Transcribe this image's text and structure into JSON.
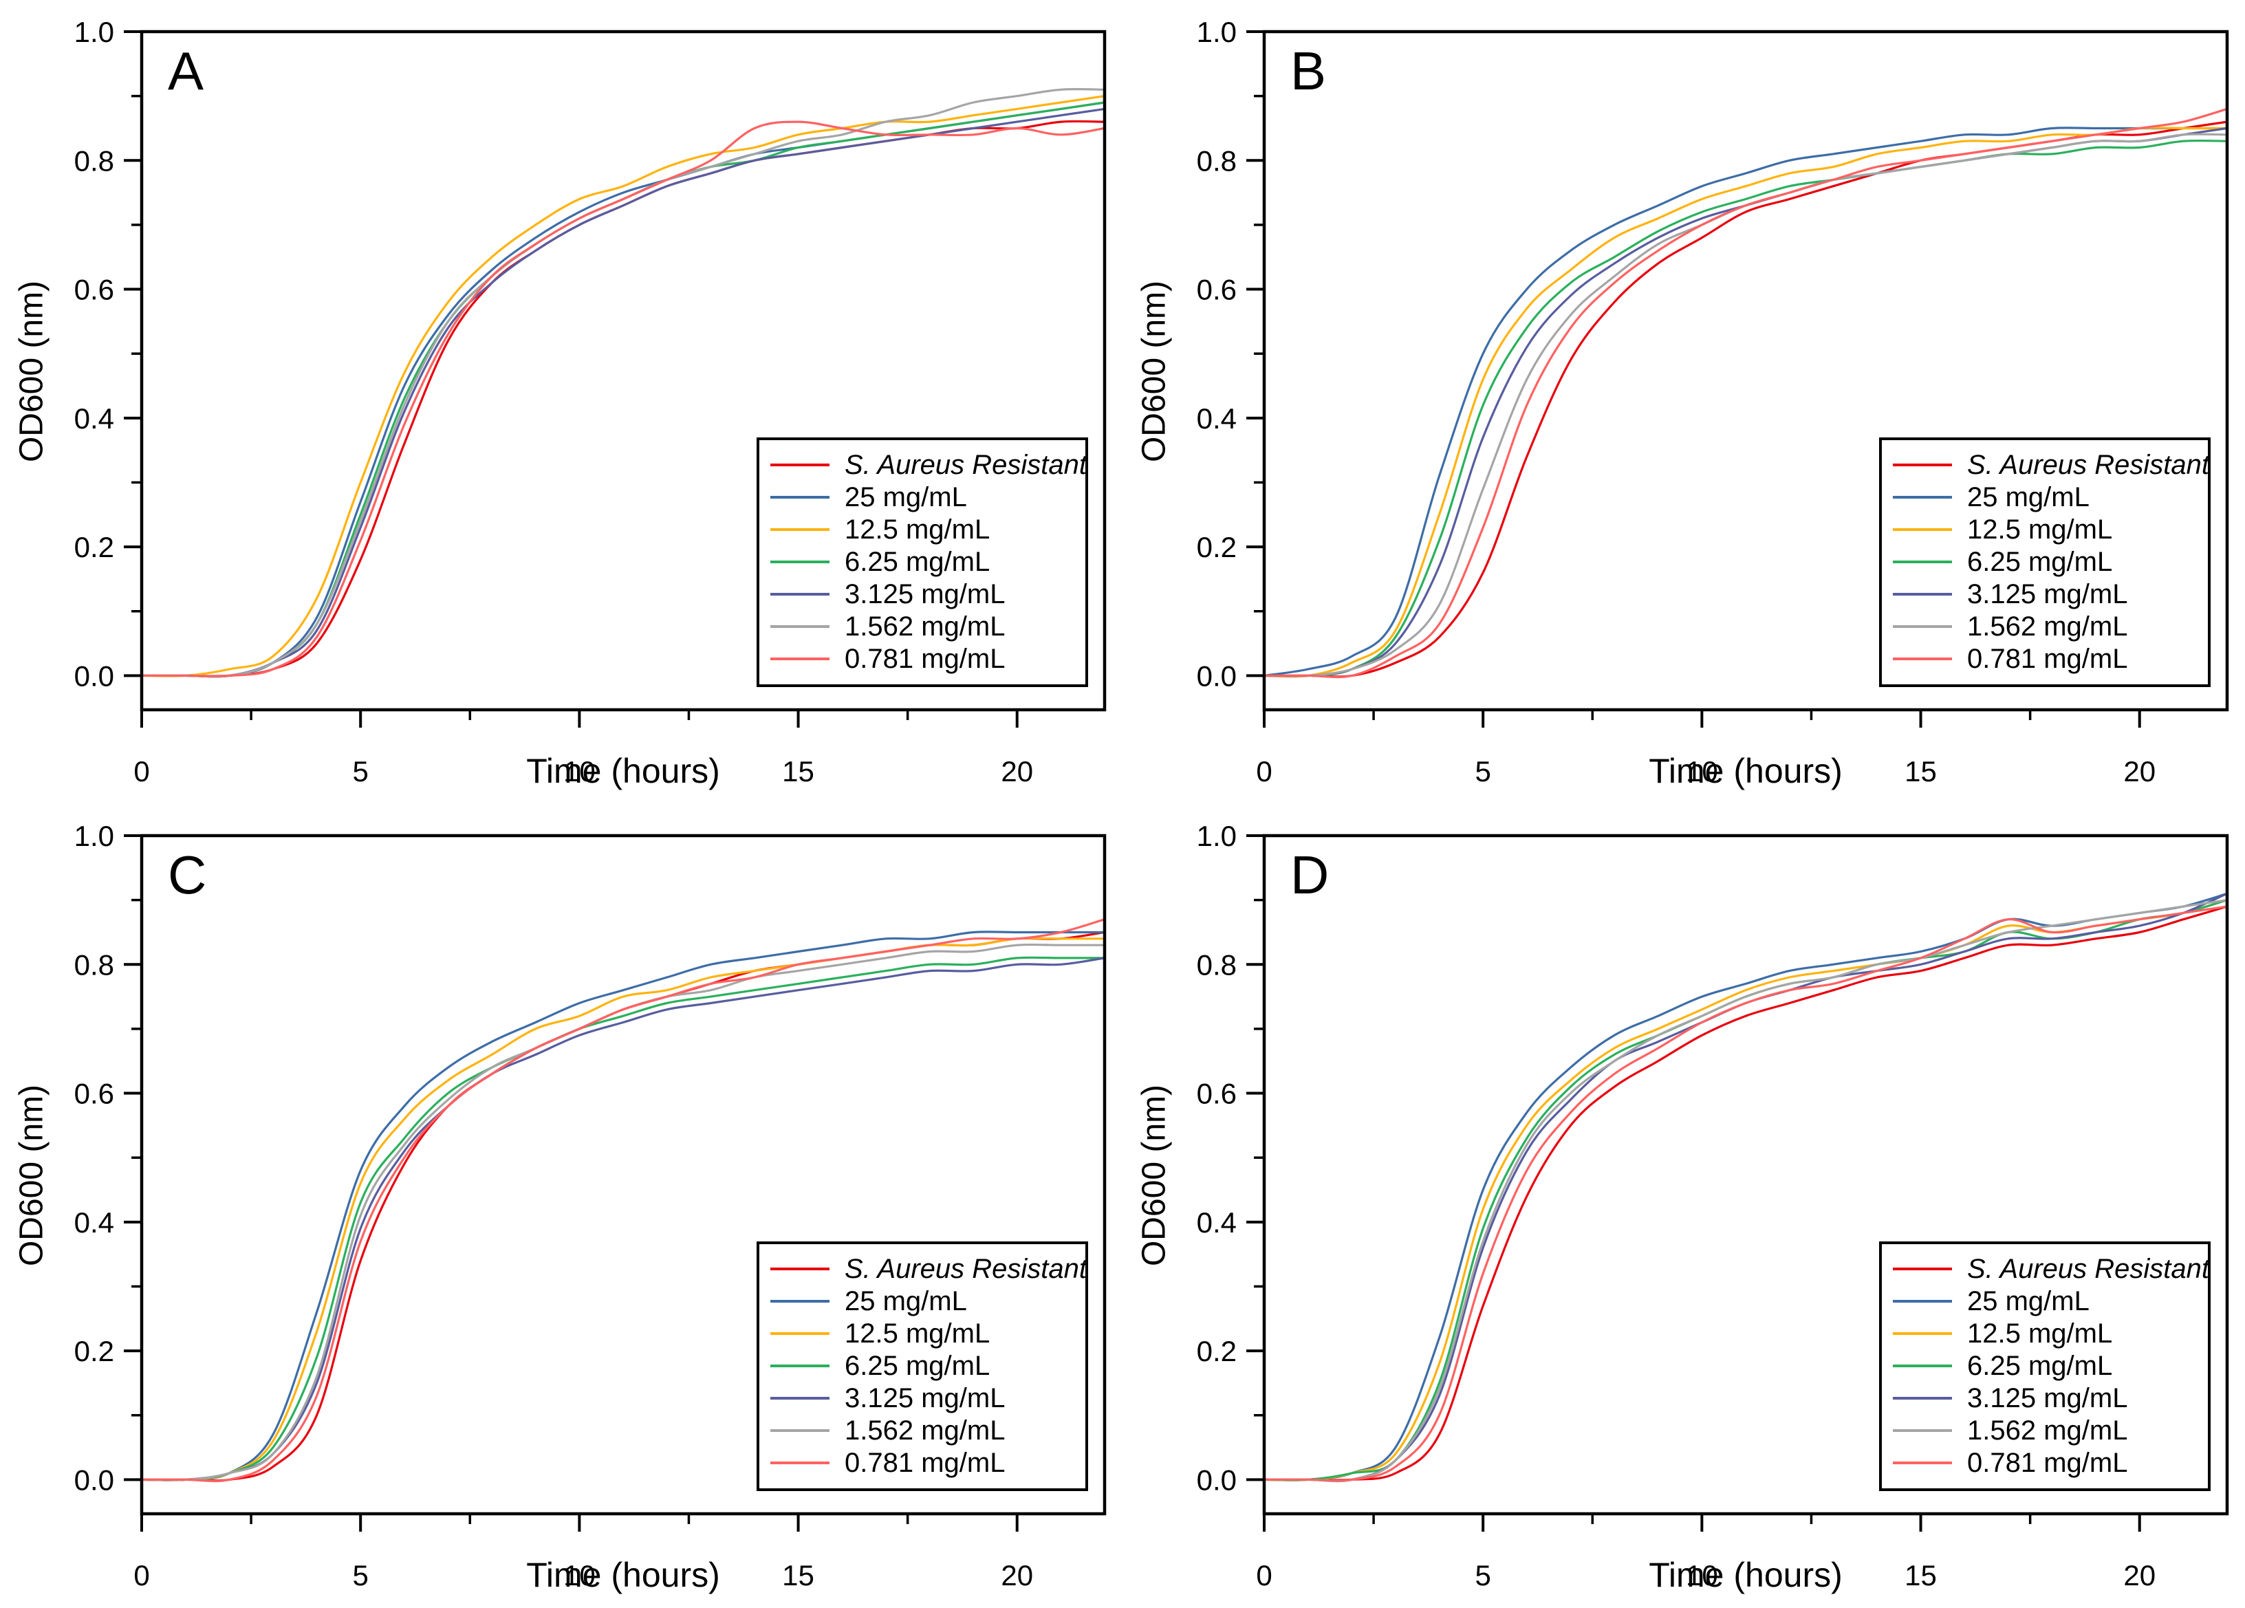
{
  "figure": {
    "description_labels": [
      "A",
      "B",
      "C",
      "D"
    ]
  },
  "axes": {
    "xlabel": "Time (hours)",
    "ylabel": "OD600 (nm)",
    "x_range": [
      0,
      22
    ],
    "y_range": [
      -0.053,
      1.0
    ],
    "x_major_ticks": [
      0,
      5,
      10,
      15,
      20
    ],
    "x_minor_ticks": [
      2.5,
      7.5,
      12.5,
      17.5
    ],
    "y_major_ticks": [
      0.0,
      0.2,
      0.4,
      0.6,
      0.8,
      1.0
    ],
    "y_minor_ticks": [
      0.1,
      0.3,
      0.5,
      0.7,
      0.9
    ],
    "grid": "off",
    "legend_position": "lower-right"
  },
  "legend": {
    "entries": [
      {
        "label": "S. Aureus Resistant",
        "color": "#e8000d",
        "italic": true
      },
      {
        "label": "25 mg/mL",
        "color": "#3d6da6"
      },
      {
        "label": "12.5 mg/mL",
        "color": "#ffb30f"
      },
      {
        "label": "6.25 mg/mL",
        "color": "#2bb05d"
      },
      {
        "label": "3.125 mg/mL",
        "color": "#585d9f"
      },
      {
        "label": "1.562 mg/mL",
        "color": "#a5a5a5"
      },
      {
        "label": "0.781 mg/mL",
        "color": "#ff6262"
      }
    ]
  },
  "time_hours": [
    0,
    1,
    2,
    3,
    4,
    5,
    6,
    7,
    8,
    9,
    10,
    11,
    12,
    13,
    14,
    15,
    16,
    17,
    18,
    19,
    20,
    21,
    22
  ],
  "chart_data": [
    {
      "panel_label": "A",
      "type": "line",
      "xlabel": "Time (hours)",
      "ylabel": "OD600 (nm)",
      "ylim": [
        -0.053,
        1.0
      ],
      "series": [
        {
          "name": "S. Aureus Resistant",
          "values": [
            0,
            0,
            0,
            0.01,
            0.05,
            0.18,
            0.36,
            0.52,
            0.61,
            0.66,
            0.7,
            0.73,
            0.76,
            0.78,
            0.8,
            0.81,
            0.82,
            0.83,
            0.84,
            0.85,
            0.85,
            0.86,
            0.86
          ]
        },
        {
          "name": "25 mg/mL",
          "values": [
            0,
            0,
            0,
            0.02,
            0.09,
            0.27,
            0.45,
            0.56,
            0.63,
            0.68,
            0.72,
            0.75,
            0.77,
            0.79,
            0.81,
            0.82,
            0.83,
            0.84,
            0.85,
            0.86,
            0.87,
            0.88,
            0.89
          ]
        },
        {
          "name": "12.5 mg/mL",
          "values": [
            0,
            0,
            0.01,
            0.03,
            0.12,
            0.3,
            0.47,
            0.58,
            0.65,
            0.7,
            0.74,
            0.76,
            0.79,
            0.81,
            0.82,
            0.84,
            0.85,
            0.86,
            0.86,
            0.87,
            0.88,
            0.89,
            0.9
          ]
        },
        {
          "name": "6.25 mg/mL",
          "values": [
            0,
            0,
            0,
            0.02,
            0.08,
            0.25,
            0.43,
            0.55,
            0.62,
            0.67,
            0.71,
            0.74,
            0.77,
            0.79,
            0.8,
            0.82,
            0.83,
            0.84,
            0.85,
            0.86,
            0.87,
            0.88,
            0.89
          ]
        },
        {
          "name": "3.125 mg/mL",
          "values": [
            0,
            0,
            0,
            0.02,
            0.07,
            0.23,
            0.41,
            0.54,
            0.61,
            0.66,
            0.7,
            0.73,
            0.76,
            0.78,
            0.8,
            0.81,
            0.82,
            0.83,
            0.84,
            0.85,
            0.86,
            0.87,
            0.88
          ]
        },
        {
          "name": "1.562 mg/mL",
          "values": [
            0,
            0,
            0,
            0.02,
            0.08,
            0.24,
            0.42,
            0.55,
            0.62,
            0.67,
            0.71,
            0.74,
            0.77,
            0.79,
            0.81,
            0.83,
            0.84,
            0.86,
            0.87,
            0.89,
            0.9,
            0.91,
            0.91
          ]
        },
        {
          "name": "0.781 mg/mL",
          "values": [
            0,
            0,
            0,
            0.01,
            0.06,
            0.21,
            0.39,
            0.53,
            0.62,
            0.67,
            0.71,
            0.74,
            0.77,
            0.8,
            0.85,
            0.86,
            0.85,
            0.84,
            0.84,
            0.84,
            0.85,
            0.84,
            0.85
          ]
        }
      ]
    },
    {
      "panel_label": "B",
      "type": "line",
      "xlabel": "Time (hours)",
      "ylabel": "OD600 (nm)",
      "ylim": [
        -0.053,
        1.0
      ],
      "series": [
        {
          "name": "S. Aureus Resistant",
          "values": [
            0,
            0,
            0,
            0.02,
            0.06,
            0.16,
            0.34,
            0.49,
            0.58,
            0.64,
            0.68,
            0.72,
            0.74,
            0.76,
            0.78,
            0.8,
            0.81,
            0.82,
            0.83,
            0.84,
            0.84,
            0.85,
            0.86
          ]
        },
        {
          "name": "25 mg/mL",
          "values": [
            0,
            0.01,
            0.03,
            0.09,
            0.31,
            0.5,
            0.6,
            0.66,
            0.7,
            0.73,
            0.76,
            0.78,
            0.8,
            0.81,
            0.82,
            0.83,
            0.84,
            0.84,
            0.85,
            0.85,
            0.85,
            0.85,
            0.85
          ]
        },
        {
          "name": "12.5 mg/mL",
          "values": [
            0,
            0,
            0.02,
            0.07,
            0.25,
            0.46,
            0.57,
            0.63,
            0.68,
            0.71,
            0.74,
            0.76,
            0.78,
            0.79,
            0.81,
            0.82,
            0.83,
            0.83,
            0.84,
            0.84,
            0.85,
            0.85,
            0.85
          ]
        },
        {
          "name": "6.25 mg/mL",
          "values": [
            0,
            0,
            0.01,
            0.06,
            0.21,
            0.42,
            0.54,
            0.61,
            0.65,
            0.69,
            0.72,
            0.74,
            0.76,
            0.77,
            0.78,
            0.79,
            0.8,
            0.81,
            0.81,
            0.82,
            0.82,
            0.83,
            0.83
          ]
        },
        {
          "name": "3.125 mg/mL",
          "values": [
            0,
            0,
            0.01,
            0.05,
            0.17,
            0.37,
            0.51,
            0.59,
            0.64,
            0.68,
            0.71,
            0.73,
            0.75,
            0.77,
            0.78,
            0.79,
            0.8,
            0.81,
            0.82,
            0.83,
            0.83,
            0.84,
            0.85
          ]
        },
        {
          "name": "1.562 mg/mL",
          "values": [
            0,
            0,
            0.01,
            0.04,
            0.11,
            0.29,
            0.46,
            0.56,
            0.62,
            0.67,
            0.7,
            0.73,
            0.75,
            0.77,
            0.78,
            0.79,
            0.8,
            0.81,
            0.82,
            0.83,
            0.83,
            0.84,
            0.84
          ]
        },
        {
          "name": "0.781 mg/mL",
          "values": [
            0,
            0,
            0,
            0.03,
            0.08,
            0.23,
            0.42,
            0.54,
            0.61,
            0.66,
            0.7,
            0.73,
            0.75,
            0.77,
            0.79,
            0.8,
            0.81,
            0.82,
            0.83,
            0.84,
            0.85,
            0.86,
            0.88
          ]
        }
      ]
    },
    {
      "panel_label": "C",
      "type": "line",
      "xlabel": "Time (hours)",
      "ylabel": "OD600 (nm)",
      "ylim": [
        -0.053,
        1.0
      ],
      "series": [
        {
          "name": "S. Aureus Resistant",
          "values": [
            0,
            0,
            0,
            0.02,
            0.1,
            0.34,
            0.49,
            0.58,
            0.63,
            0.67,
            0.7,
            0.73,
            0.75,
            0.77,
            0.79,
            0.8,
            0.81,
            0.82,
            0.83,
            0.83,
            0.84,
            0.84,
            0.85
          ]
        },
        {
          "name": "25 mg/mL",
          "values": [
            0,
            0,
            0.01,
            0.07,
            0.26,
            0.48,
            0.58,
            0.64,
            0.68,
            0.71,
            0.74,
            0.76,
            0.78,
            0.8,
            0.81,
            0.82,
            0.83,
            0.84,
            0.84,
            0.85,
            0.85,
            0.85,
            0.85
          ]
        },
        {
          "name": "12.5 mg/mL",
          "values": [
            0,
            0,
            0.01,
            0.06,
            0.23,
            0.46,
            0.56,
            0.62,
            0.66,
            0.7,
            0.72,
            0.75,
            0.76,
            0.78,
            0.79,
            0.8,
            0.81,
            0.82,
            0.83,
            0.83,
            0.84,
            0.84,
            0.84
          ]
        },
        {
          "name": "6.25 mg/mL",
          "values": [
            0,
            0,
            0.01,
            0.05,
            0.19,
            0.43,
            0.53,
            0.6,
            0.64,
            0.67,
            0.7,
            0.72,
            0.74,
            0.75,
            0.76,
            0.77,
            0.78,
            0.79,
            0.8,
            0.8,
            0.81,
            0.81,
            0.81
          ]
        },
        {
          "name": "3.125 mg/mL",
          "values": [
            0,
            0,
            0.01,
            0.04,
            0.15,
            0.39,
            0.51,
            0.58,
            0.63,
            0.66,
            0.69,
            0.71,
            0.73,
            0.74,
            0.75,
            0.76,
            0.77,
            0.78,
            0.79,
            0.79,
            0.8,
            0.8,
            0.81
          ]
        },
        {
          "name": "1.562 mg/mL",
          "values": [
            0,
            0,
            0.01,
            0.04,
            0.16,
            0.41,
            0.52,
            0.59,
            0.64,
            0.67,
            0.7,
            0.73,
            0.75,
            0.76,
            0.78,
            0.79,
            0.8,
            0.81,
            0.82,
            0.82,
            0.83,
            0.83,
            0.83
          ]
        },
        {
          "name": "0.781 mg/mL",
          "values": [
            0,
            0,
            0,
            0.03,
            0.13,
            0.37,
            0.5,
            0.58,
            0.63,
            0.67,
            0.7,
            0.73,
            0.75,
            0.77,
            0.78,
            0.8,
            0.81,
            0.82,
            0.83,
            0.84,
            0.84,
            0.85,
            0.87
          ]
        }
      ]
    },
    {
      "panel_label": "D",
      "type": "line",
      "xlabel": "Time (hours)",
      "ylabel": "OD600 (nm)",
      "ylim": [
        -0.053,
        1.0
      ],
      "series": [
        {
          "name": "S. Aureus Resistant",
          "values": [
            0,
            0,
            0,
            0.01,
            0.07,
            0.27,
            0.44,
            0.55,
            0.61,
            0.65,
            0.69,
            0.72,
            0.74,
            0.76,
            0.78,
            0.79,
            0.81,
            0.83,
            0.83,
            0.84,
            0.85,
            0.87,
            0.89
          ]
        },
        {
          "name": "25 mg/mL",
          "values": [
            0,
            0,
            0.01,
            0.05,
            0.22,
            0.45,
            0.57,
            0.64,
            0.69,
            0.72,
            0.75,
            0.77,
            0.79,
            0.8,
            0.81,
            0.82,
            0.84,
            0.87,
            0.86,
            0.87,
            0.88,
            0.89,
            0.91
          ]
        },
        {
          "name": "12.5 mg/mL",
          "values": [
            0,
            0,
            0.01,
            0.04,
            0.18,
            0.42,
            0.55,
            0.62,
            0.67,
            0.7,
            0.73,
            0.76,
            0.78,
            0.79,
            0.8,
            0.81,
            0.83,
            0.86,
            0.85,
            0.86,
            0.87,
            0.88,
            0.9
          ]
        },
        {
          "name": "6.25 mg/mL",
          "values": [
            0,
            0,
            0.01,
            0.03,
            0.15,
            0.39,
            0.53,
            0.61,
            0.66,
            0.69,
            0.72,
            0.75,
            0.77,
            0.78,
            0.8,
            0.81,
            0.82,
            0.85,
            0.84,
            0.85,
            0.87,
            0.88,
            0.9
          ]
        },
        {
          "name": "3.125 mg/mL",
          "values": [
            0,
            0,
            0,
            0.03,
            0.13,
            0.36,
            0.51,
            0.59,
            0.65,
            0.68,
            0.71,
            0.74,
            0.76,
            0.78,
            0.79,
            0.8,
            0.82,
            0.84,
            0.84,
            0.85,
            0.86,
            0.88,
            0.91
          ]
        },
        {
          "name": "1.562 mg/mL",
          "values": [
            0,
            0,
            0,
            0.03,
            0.14,
            0.37,
            0.52,
            0.6,
            0.65,
            0.69,
            0.72,
            0.75,
            0.77,
            0.78,
            0.8,
            0.81,
            0.83,
            0.85,
            0.86,
            0.87,
            0.88,
            0.89,
            0.9
          ]
        },
        {
          "name": "0.781 mg/mL",
          "values": [
            0,
            0,
            0,
            0.02,
            0.1,
            0.32,
            0.48,
            0.57,
            0.63,
            0.67,
            0.71,
            0.74,
            0.76,
            0.77,
            0.79,
            0.81,
            0.84,
            0.87,
            0.85,
            0.86,
            0.87,
            0.88,
            0.89
          ]
        }
      ]
    }
  ]
}
